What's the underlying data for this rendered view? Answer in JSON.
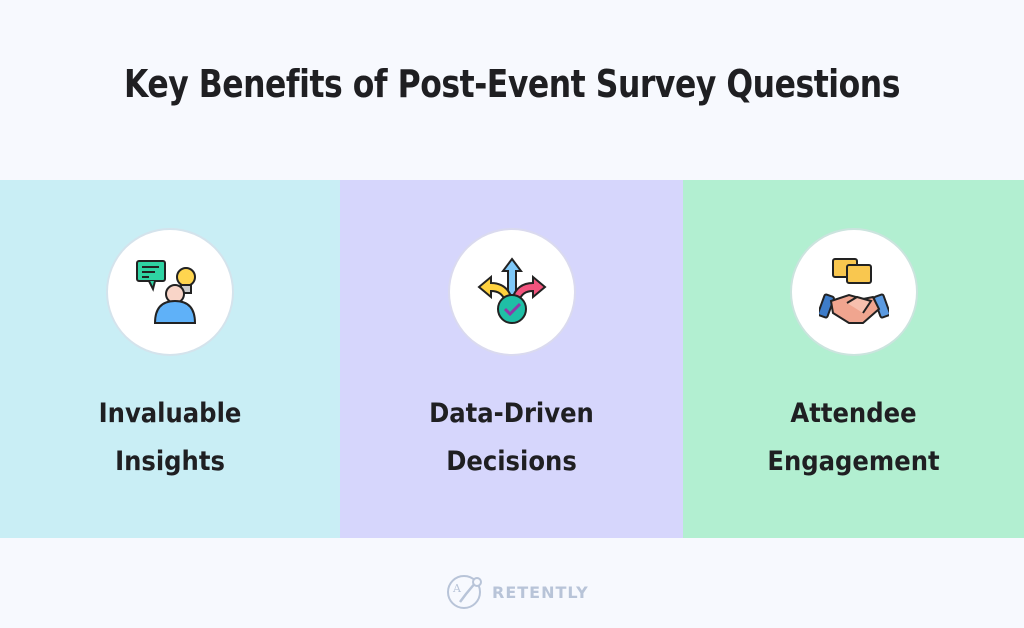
{
  "title": "Key Benefits of Post-Event Survey Questions",
  "benefits": [
    {
      "line1": "Invaluable",
      "line2": "Insights",
      "icon": "person-idea-icon",
      "bg": "#c9eef5"
    },
    {
      "line1": "Data-Driven",
      "line2": "Decisions",
      "icon": "direction-arrows-check-icon",
      "bg": "#d6d6fc"
    },
    {
      "line1": "Attendee",
      "line2": "Engagement",
      "icon": "handshake-chat-icon",
      "bg": "#b2efd1"
    }
  ],
  "brand": {
    "name": "RETENTLY",
    "color": "#b8c4d8"
  }
}
